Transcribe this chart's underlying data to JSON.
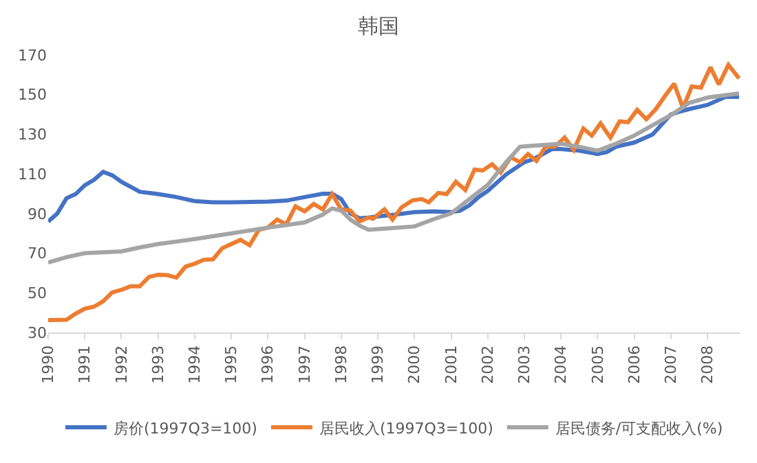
{
  "chart_data": {
    "type": "line",
    "title": "韩国",
    "xlim": [
      1990,
      2008.9
    ],
    "xticks": [
      1990,
      1991,
      1992,
      1993,
      1994,
      1995,
      1996,
      1997,
      1998,
      1999,
      2000,
      2001,
      2002,
      2003,
      2004,
      2005,
      2006,
      2007,
      2008
    ],
    "ylim": [
      30,
      170
    ],
    "yticks": [
      30,
      50,
      70,
      90,
      110,
      130,
      150,
      170
    ],
    "grid": false,
    "legend": "bottom",
    "marker": "none",
    "line_style": "solid",
    "series": [
      {
        "name": "房价(1997Q3=100)",
        "color": "#4472c4",
        "x": [
          1990,
          1990.25,
          1990.5,
          1990.75,
          1991,
          1991.25,
          1991.5,
          1991.75,
          1992,
          1992.5,
          1993,
          1993.5,
          1994,
          1994.5,
          1995,
          1996,
          1996.5,
          1997,
          1997.5,
          1997.75,
          1998,
          1998.25,
          1998.5,
          1998.75,
          1999,
          1999.5,
          2000,
          2000.5,
          2001,
          2001.25,
          2001.5,
          2001.75,
          2002,
          2002.5,
          2003,
          2003.25,
          2003.5,
          2003.75,
          2004,
          2004.5,
          2005,
          2005.25,
          2005.5,
          2006,
          2006.5,
          2007,
          2007.25,
          2007.5,
          2008,
          2008.5,
          2008.86
        ],
        "values": [
          86,
          90,
          97.7,
          99.8,
          104.3,
          107,
          111,
          109.3,
          106,
          101,
          99.8,
          98.3,
          96.3,
          95.7,
          95.7,
          96,
          96.5,
          98.3,
          100,
          100,
          97.3,
          90.1,
          87.6,
          88,
          88.6,
          89.5,
          90.7,
          91.1,
          90.7,
          91.5,
          94.2,
          98.3,
          101.4,
          109.7,
          115.9,
          117.5,
          120,
          122.5,
          122.5,
          121.7,
          120,
          121,
          123.7,
          125.8,
          129.9,
          140,
          141.5,
          142.7,
          144.8,
          148.9,
          148.9
        ]
      },
      {
        "name": "居民收入(1997Q3=100)",
        "color": "#ed7d31",
        "x": [
          1990,
          1990.5,
          1990.75,
          1991,
          1991.25,
          1991.5,
          1991.75,
          1992,
          1992.25,
          1992.5,
          1992.75,
          1993,
          1993.25,
          1993.5,
          1993.75,
          1994,
          1994.25,
          1994.5,
          1994.75,
          1995,
          1995.25,
          1995.5,
          1995.75,
          1996,
          1996.25,
          1996.5,
          1996.75,
          1997,
          1997.25,
          1997.5,
          1997.75,
          1998,
          1998.25,
          1998.5,
          1998.75,
          1998.87,
          1999.18,
          1999.4,
          1999.65,
          1999.95,
          2000.2,
          2000.39,
          2000.65,
          2000.88,
          2001.13,
          2001.39,
          2001.64,
          2001.86,
          2002.12,
          2002.35,
          2002.63,
          2002.88,
          2003.1,
          2003.33,
          2003.58,
          2003.83,
          2004.1,
          2004.35,
          2004.61,
          2004.84,
          2005.08,
          2005.35,
          2005.6,
          2005.83,
          2006.08,
          2006.33,
          2006.59,
          2006.84,
          2007.09,
          2007.33,
          2007.57,
          2007.82,
          2008.08,
          2008.31,
          2008.57,
          2008.86
        ],
        "values": [
          36.2,
          36.4,
          39.5,
          42,
          43,
          45.7,
          50.2,
          51.5,
          53.3,
          53.3,
          58,
          59.1,
          58.9,
          57.7,
          63.2,
          64.7,
          66.7,
          66.9,
          72.5,
          74.6,
          76.7,
          74,
          81.8,
          82.9,
          87,
          84.5,
          93.6,
          91.1,
          94.8,
          92.1,
          99.8,
          92.1,
          91.5,
          86,
          88,
          87.4,
          92.1,
          87,
          93.2,
          96.7,
          97.3,
          95.7,
          100.4,
          99.8,
          106,
          101.9,
          112.2,
          111.7,
          114.9,
          110.7,
          118.4,
          115.9,
          120,
          116.5,
          123.7,
          123.7,
          128.3,
          122.1,
          132.9,
          129.3,
          135.5,
          128.3,
          136.5,
          136.1,
          142.3,
          137.6,
          142.7,
          149.4,
          155.5,
          143.2,
          154.1,
          153.5,
          163.8,
          155.1,
          165,
          158.2
        ]
      },
      {
        "name": "居民债务/可支配收入(%)",
        "color": "#a5a5a5",
        "x": [
          1990,
          1990.5,
          1991,
          1992,
          1992.5,
          1993,
          1994,
          1995,
          1996,
          1997,
          1997.5,
          1997.75,
          1998,
          1998.25,
          1998.5,
          1998.75,
          1999.2,
          2000,
          2000.5,
          2001,
          2001.5,
          2002,
          2002.5,
          2002.88,
          2003.2,
          2004,
          2004.5,
          2005,
          2005.5,
          2006,
          2006.5,
          2007,
          2007.5,
          2008,
          2008.86
        ],
        "values": [
          65.3,
          68,
          70,
          70.9,
          72.9,
          74.6,
          77.1,
          80,
          82.9,
          85.5,
          89.5,
          92.6,
          91.5,
          87,
          83.9,
          81.8,
          82.4,
          83.5,
          87,
          90.1,
          97.3,
          104.5,
          115.9,
          123.7,
          124.2,
          125.2,
          123.7,
          121.7,
          125.2,
          129.3,
          134.5,
          139.6,
          145.8,
          148.5,
          150.6
        ]
      }
    ]
  }
}
